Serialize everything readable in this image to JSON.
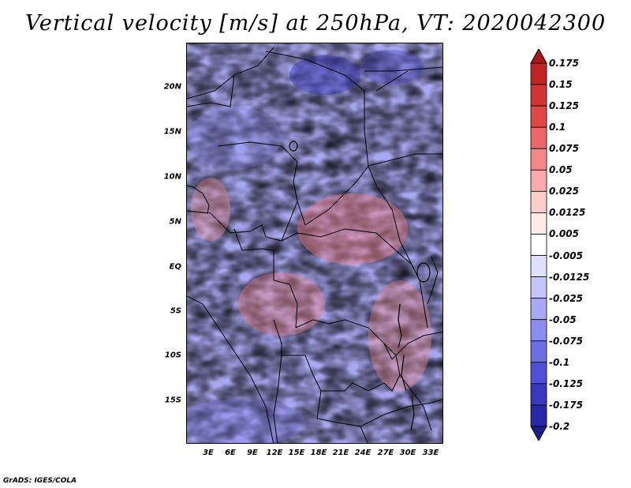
{
  "title": "Vertical velocity [m/s] at 250hPa, VT: 2020042300",
  "map": {
    "y_labels": [
      "20N",
      "15N",
      "10N",
      "5N",
      "EQ",
      "5S",
      "10S",
      "15S"
    ],
    "x_labels": [
      "3E",
      "6E",
      "9E",
      "12E",
      "15E",
      "18E",
      "21E",
      "24E",
      "27E",
      "30E",
      "33E"
    ],
    "lon_range": [
      0,
      35
    ],
    "lat_range": [
      -20,
      25
    ]
  },
  "colorbar": {
    "labels": [
      "0.175",
      "0.15",
      "0.125",
      "0.1",
      "0.075",
      "0.05",
      "0.025",
      "0.0125",
      "0.005",
      "-0.005",
      "-0.0125",
      "-0.025",
      "-0.05",
      "-0.075",
      "-0.1",
      "-0.125",
      "-0.175",
      "-0.2"
    ],
    "colors": [
      "#a81818",
      "#c02424",
      "#d03434",
      "#e04848",
      "#ec6868",
      "#f48888",
      "#faaaaa",
      "#fdcccc",
      "#ffeaea",
      "#ffffff",
      "#e0e0ff",
      "#c4c4fa",
      "#a8a8f4",
      "#8c8cee",
      "#6e6ee4",
      "#5050d6",
      "#3838c0",
      "#2828a8",
      "#1c1c8c"
    ]
  },
  "credit": "GrADS: IGES/COLA"
}
